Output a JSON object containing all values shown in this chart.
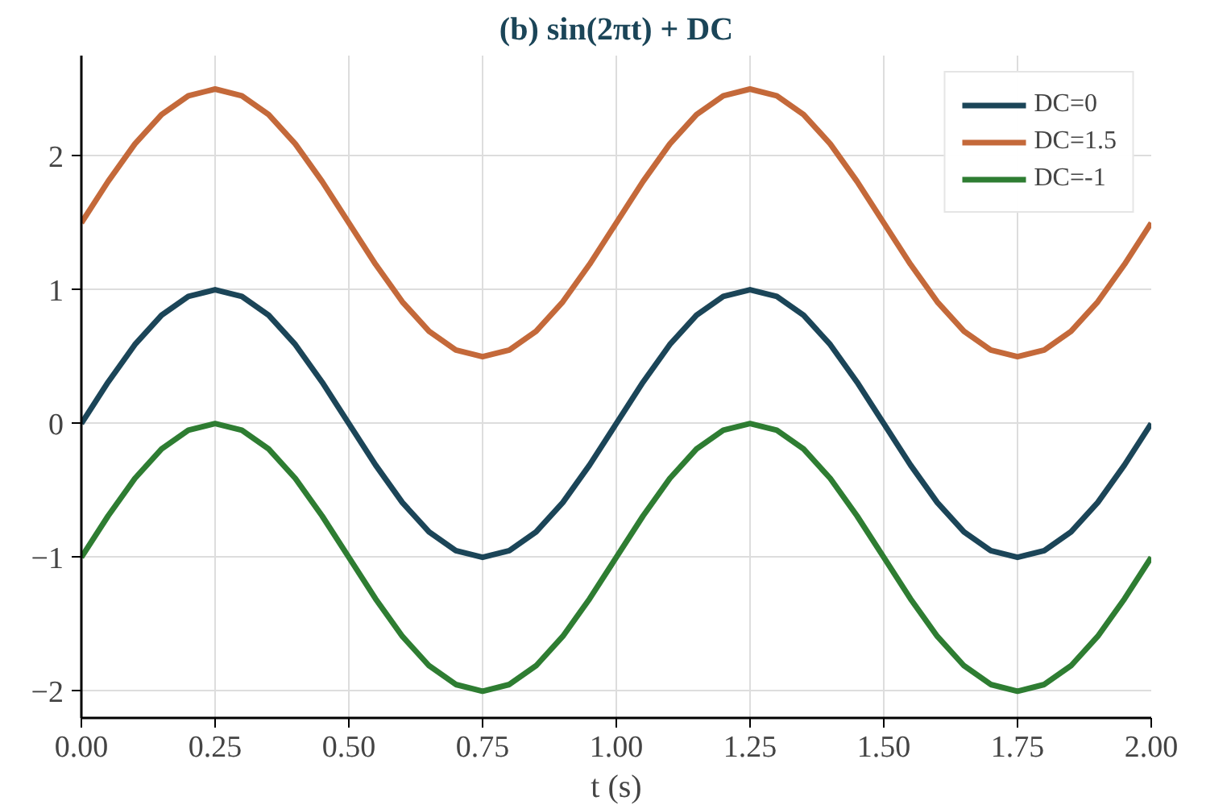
{
  "chart_data": {
    "type": "line",
    "title": "(b) sin(2πt) + DC",
    "xlabel": "t (s)",
    "x": [
      0,
      0.05,
      0.1,
      0.15,
      0.2,
      0.25,
      0.3,
      0.35,
      0.4,
      0.45,
      0.5,
      0.55,
      0.6,
      0.65,
      0.7,
      0.75,
      0.8,
      0.85,
      0.9,
      0.95,
      1,
      1.05,
      1.1,
      1.15,
      1.2,
      1.25,
      1.3,
      1.35,
      1.4,
      1.45,
      1.5,
      1.55,
      1.6,
      1.65,
      1.7,
      1.75,
      1.8,
      1.85,
      1.9,
      1.95,
      2
    ],
    "series": [
      {
        "name": "DC=0",
        "color": "#1b4558",
        "values": [
          0,
          0.31,
          0.59,
          0.81,
          0.95,
          1,
          0.95,
          0.81,
          0.59,
          0.31,
          0,
          -0.31,
          -0.59,
          -0.81,
          -0.95,
          -1,
          -0.95,
          -0.81,
          -0.59,
          -0.31,
          0,
          0.31,
          0.59,
          0.81,
          0.95,
          1,
          0.95,
          0.81,
          0.59,
          0.31,
          0,
          -0.31,
          -0.59,
          -0.81,
          -0.95,
          -1,
          -0.95,
          -0.81,
          -0.59,
          -0.31,
          0
        ]
      },
      {
        "name": "DC=1.5",
        "color": "#c4693a",
        "values": [
          1.5,
          1.81,
          2.09,
          2.31,
          2.45,
          2.5,
          2.45,
          2.31,
          2.09,
          1.81,
          1.5,
          1.19,
          0.91,
          0.69,
          0.55,
          0.5,
          0.55,
          0.69,
          0.91,
          1.19,
          1.5,
          1.81,
          2.09,
          2.31,
          2.45,
          2.5,
          2.45,
          2.31,
          2.09,
          1.81,
          1.5,
          1.19,
          0.91,
          0.69,
          0.55,
          0.5,
          0.55,
          0.69,
          0.91,
          1.19,
          1.5
        ]
      },
      {
        "name": "DC=-1",
        "color": "#2e7d32",
        "values": [
          -1,
          -0.69,
          -0.41,
          -0.19,
          -0.05,
          0,
          -0.05,
          -0.19,
          -0.41,
          -0.69,
          -1,
          -1.31,
          -1.59,
          -1.81,
          -1.95,
          -2,
          -1.95,
          -1.81,
          -1.59,
          -1.31,
          -1,
          -0.69,
          -0.41,
          -0.19,
          -0.05,
          0,
          -0.05,
          -0.19,
          -0.41,
          -0.69,
          -1,
          -1.31,
          -1.59,
          -1.81,
          -1.95,
          -2,
          -1.95,
          -1.81,
          -1.59,
          -1.31,
          -1
        ]
      }
    ],
    "xlim": [
      0,
      2
    ],
    "ylim": [
      -2.2,
      2.75
    ],
    "xticks": [
      {
        "value": 0,
        "label": "0.00"
      },
      {
        "value": 0.25,
        "label": "0.25"
      },
      {
        "value": 0.5,
        "label": "0.50"
      },
      {
        "value": 0.75,
        "label": "0.75"
      },
      {
        "value": 1,
        "label": "1.00"
      },
      {
        "value": 1.25,
        "label": "1.25"
      },
      {
        "value": 1.5,
        "label": "1.50"
      },
      {
        "value": 1.75,
        "label": "1.75"
      },
      {
        "value": 2,
        "label": "2.00"
      }
    ],
    "yticks": [
      {
        "value": -2,
        "label": "−2"
      },
      {
        "value": -1,
        "label": "−1"
      },
      0,
      1,
      2
    ],
    "grid": true,
    "legend": "top right",
    "marker": "none",
    "line_style": "solid"
  }
}
